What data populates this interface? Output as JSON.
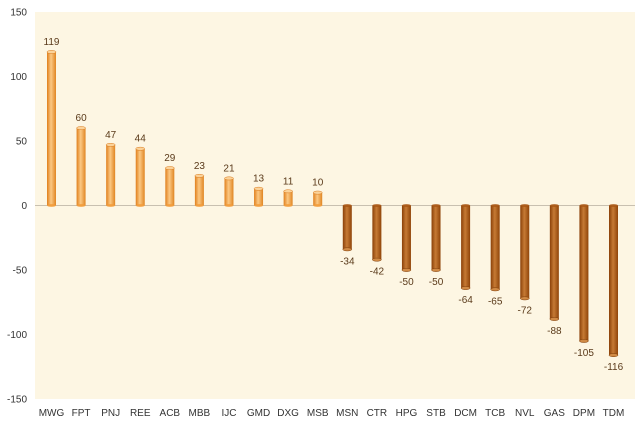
{
  "chart_data": {
    "type": "bar",
    "title": "",
    "xlabel": "",
    "ylabel": "",
    "ylim": [
      -150,
      150
    ],
    "yticks": [
      150,
      100,
      50,
      0,
      -50,
      -100,
      -150
    ],
    "grid": false,
    "legend": "none",
    "categories": [
      "MWG",
      "FPT",
      "PNJ",
      "REE",
      "ACB",
      "MBB",
      "IJC",
      "GMD",
      "DXG",
      "MSB",
      "MSN",
      "CTR",
      "HPG",
      "STB",
      "DCM",
      "TCB",
      "NVL",
      "GAS",
      "DPM",
      "TDM"
    ],
    "values": [
      119,
      60,
      47,
      44,
      29,
      23,
      21,
      13,
      11,
      10,
      -34,
      -42,
      -50,
      -50,
      -64,
      -65,
      -72,
      -88,
      -105,
      -116
    ],
    "colors": {
      "plot_background": "#fdf6e3",
      "positive_bar": "#f39a35",
      "positive_bar_light": "#fbd39a",
      "negative_bar": "#a8530f",
      "negative_bar_light": "#d08a45",
      "axis": "#bfbfbf",
      "text": "#333333",
      "data_label": "#5a3a1a"
    }
  }
}
